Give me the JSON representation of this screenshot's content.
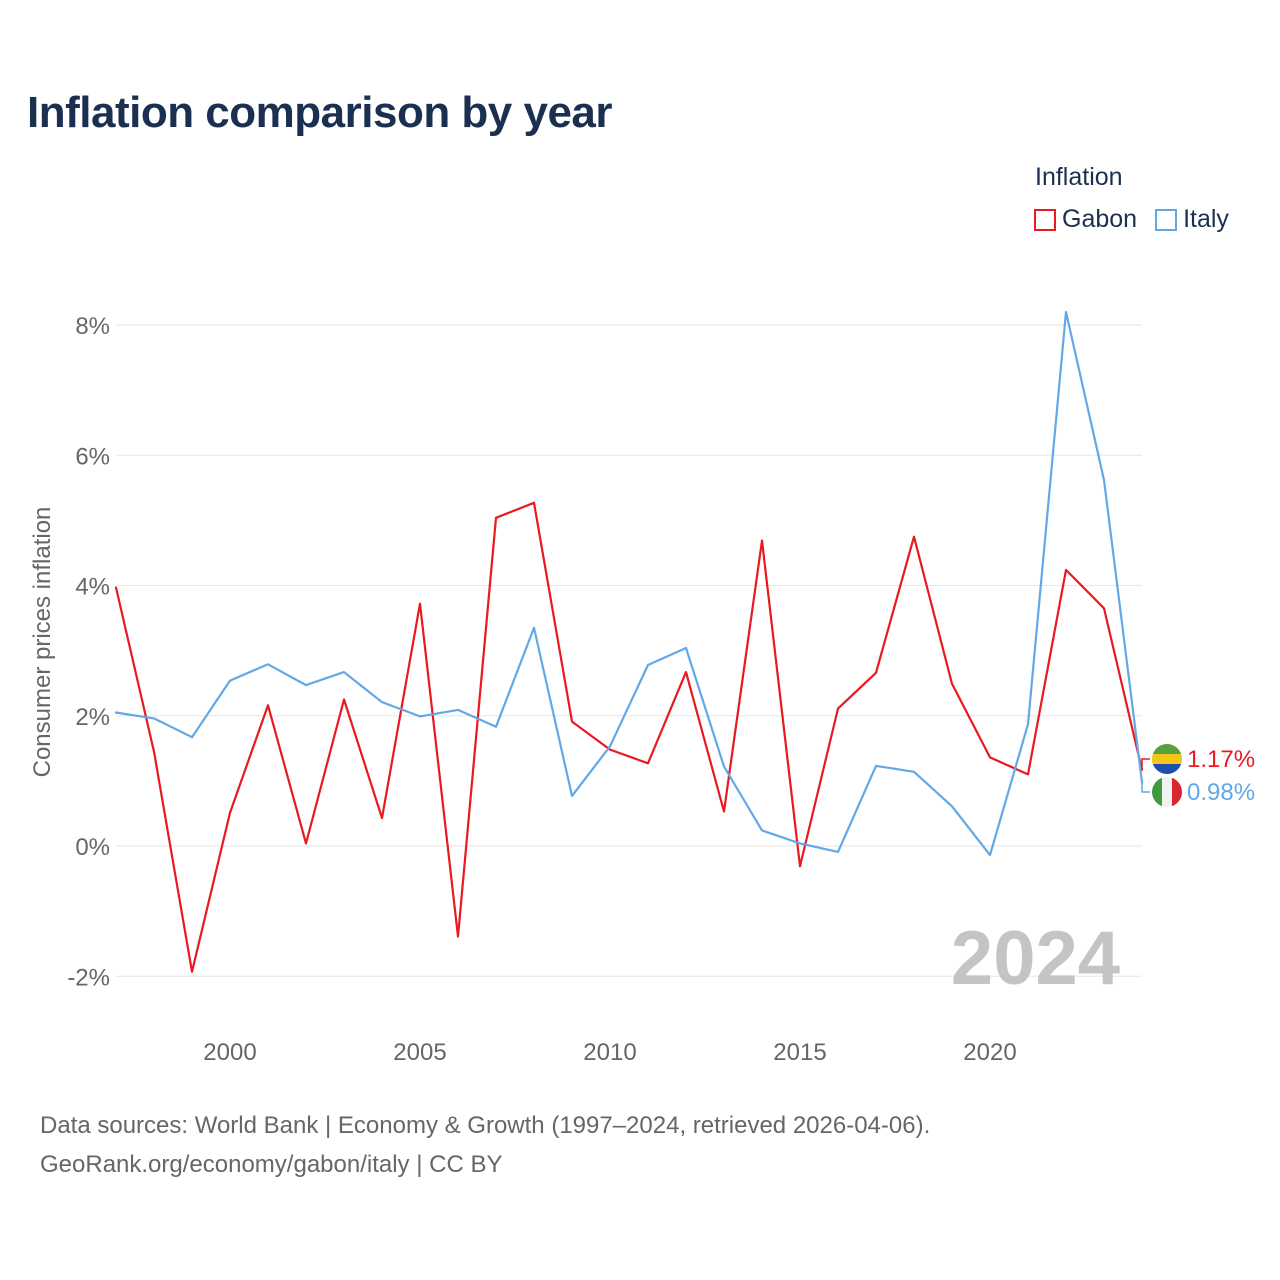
{
  "title": "Inflation comparison by year",
  "legend": {
    "title": "Inflation",
    "items": [
      {
        "name": "Gabon",
        "color": "#e8191f"
      },
      {
        "name": "Italy",
        "color": "#63a8e6"
      }
    ]
  },
  "footer": {
    "line1": "Data sources: World Bank | Economy & Growth (1997–2024, retrieved 2026-04-06).",
    "line2": "GeoRank.org/economy/gabon/italy | CC BY"
  },
  "chart_data": {
    "type": "line",
    "ylabel": "Consumer prices inflation",
    "xlabel": "",
    "xlim": [
      1997,
      2024
    ],
    "ylim": [
      -2.9,
      8.3
    ],
    "yticks": [
      -2,
      0,
      2,
      4,
      6,
      8
    ],
    "ytick_labels": [
      "-2%",
      "0%",
      "2%",
      "4%",
      "6%",
      "8%"
    ],
    "xticks": [
      2000,
      2005,
      2010,
      2015,
      2020
    ],
    "xtick_labels": [
      "2000",
      "2005",
      "2010",
      "2015",
      "2020"
    ],
    "grid": true,
    "year_watermark": "2024",
    "x": [
      1997,
      1998,
      1999,
      2000,
      2001,
      2002,
      2003,
      2004,
      2005,
      2006,
      2007,
      2008,
      2009,
      2010,
      2011,
      2012,
      2013,
      2014,
      2015,
      2016,
      2017,
      2018,
      2019,
      2020,
      2021,
      2022,
      2023,
      2024
    ],
    "series": [
      {
        "name": "Gabon",
        "color": "#e8191f",
        "end_label": "1.17%",
        "flag": "gabon-flag-icon",
        "values": [
          3.97,
          1.45,
          -1.93,
          0.51,
          2.16,
          0.04,
          2.25,
          0.43,
          3.72,
          -1.39,
          5.04,
          5.27,
          1.91,
          1.48,
          1.27,
          2.67,
          0.53,
          4.69,
          -0.31,
          2.11,
          2.66,
          4.75,
          2.49,
          1.36,
          1.1,
          4.24,
          3.65,
          1.17
        ]
      },
      {
        "name": "Italy",
        "color": "#63a8e6",
        "end_label": "0.98%",
        "flag": "italy-flag-icon",
        "values": [
          2.05,
          1.96,
          1.67,
          2.54,
          2.79,
          2.47,
          2.67,
          2.21,
          1.99,
          2.09,
          1.83,
          3.35,
          0.77,
          1.53,
          2.78,
          3.04,
          1.22,
          0.24,
          0.04,
          -0.09,
          1.23,
          1.14,
          0.61,
          -0.14,
          1.87,
          8.2,
          5.62,
          0.98
        ]
      }
    ]
  }
}
